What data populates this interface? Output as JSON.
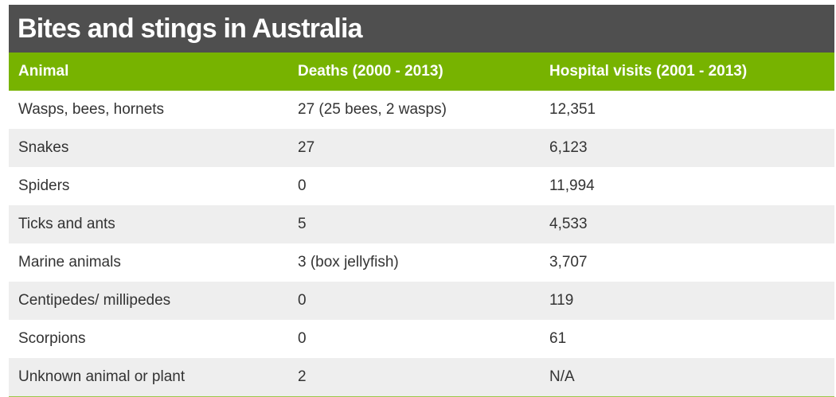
{
  "title": "Bites and stings in Australia",
  "colors": {
    "title_bg": "#4f4f4f",
    "header_bg": "#77b300",
    "row_alt_bg": "#eeeeee"
  },
  "table": {
    "headers": [
      "Animal",
      "Deaths (2000 - 2013)",
      "Hospital visits (2001 - 2013)"
    ],
    "rows": [
      [
        "Wasps, bees, hornets",
        "27 (25 bees, 2 wasps)",
        "12,351"
      ],
      [
        "Snakes",
        "27",
        "6,123"
      ],
      [
        "Spiders",
        "0",
        "11,994"
      ],
      [
        "Ticks and ants",
        "5",
        "4,533"
      ],
      [
        "Marine animals",
        "3 (box jellyfish)",
        "3,707"
      ],
      [
        "Centipedes/ millipedes",
        "0",
        "119"
      ],
      [
        "Scorpions",
        "0",
        "61"
      ],
      [
        "Unknown animal or plant",
        "2",
        "N/A"
      ]
    ]
  }
}
